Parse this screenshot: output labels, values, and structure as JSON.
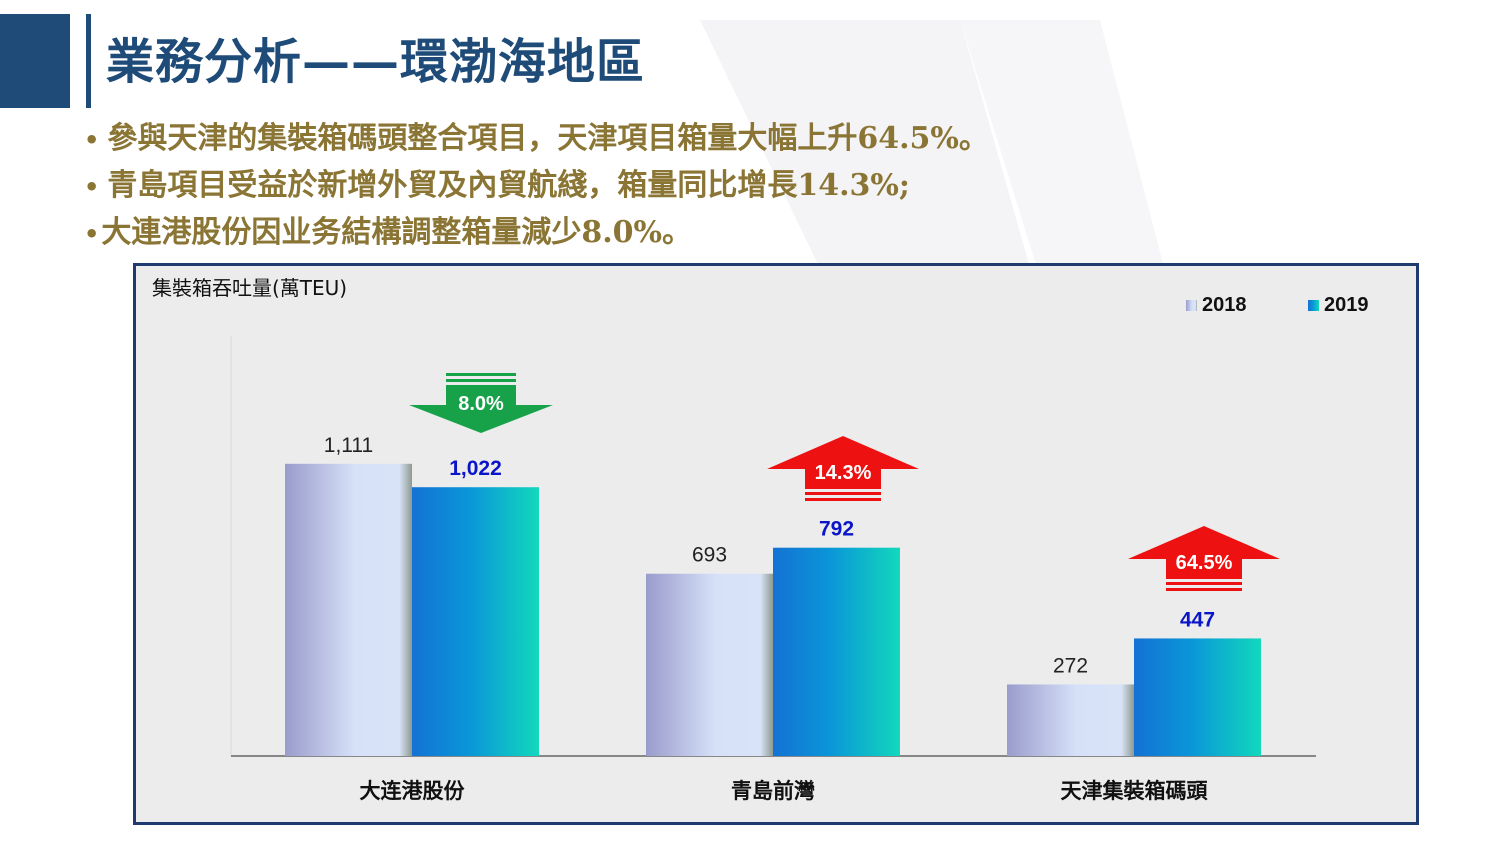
{
  "page": {
    "title": "業務分析——環渤海地區",
    "bullets": [
      "參與天津的集裝箱碼頭整合項目，天津項目箱量大幅上升64.5%。",
      "青島項目受益於新增外貿及內貿航綫，箱量同比增長14.3%;",
      "大連港股份因业务結構調整箱量減少8.0%。"
    ],
    "colors": {
      "brand": "#1e4b78",
      "bullet_text": "#8a7535",
      "frame": "#1f3a6e",
      "value_2019": "#0a14c8",
      "arrow_down": "#17a24a",
      "arrow_up": "#ee1111"
    }
  },
  "chart_data": {
    "type": "bar",
    "unit_label": "集裝箱吞吐量(萬TEU)",
    "categories": [
      "大连港股份",
      "青島前灣",
      "天津集裝箱碼頭"
    ],
    "series": [
      {
        "name": "2018",
        "values": [
          1111,
          693,
          272
        ],
        "labels": [
          "1,111",
          "693",
          "272"
        ]
      },
      {
        "name": "2019",
        "values": [
          1022,
          792,
          447
        ],
        "labels": [
          "1,022",
          "792",
          "447"
        ]
      }
    ],
    "changes": [
      {
        "label": "8.0%",
        "direction": "down"
      },
      {
        "label": "14.3%",
        "direction": "up"
      },
      {
        "label": "64.5%",
        "direction": "up"
      }
    ],
    "legend_position": "top-right",
    "grid": false
  }
}
